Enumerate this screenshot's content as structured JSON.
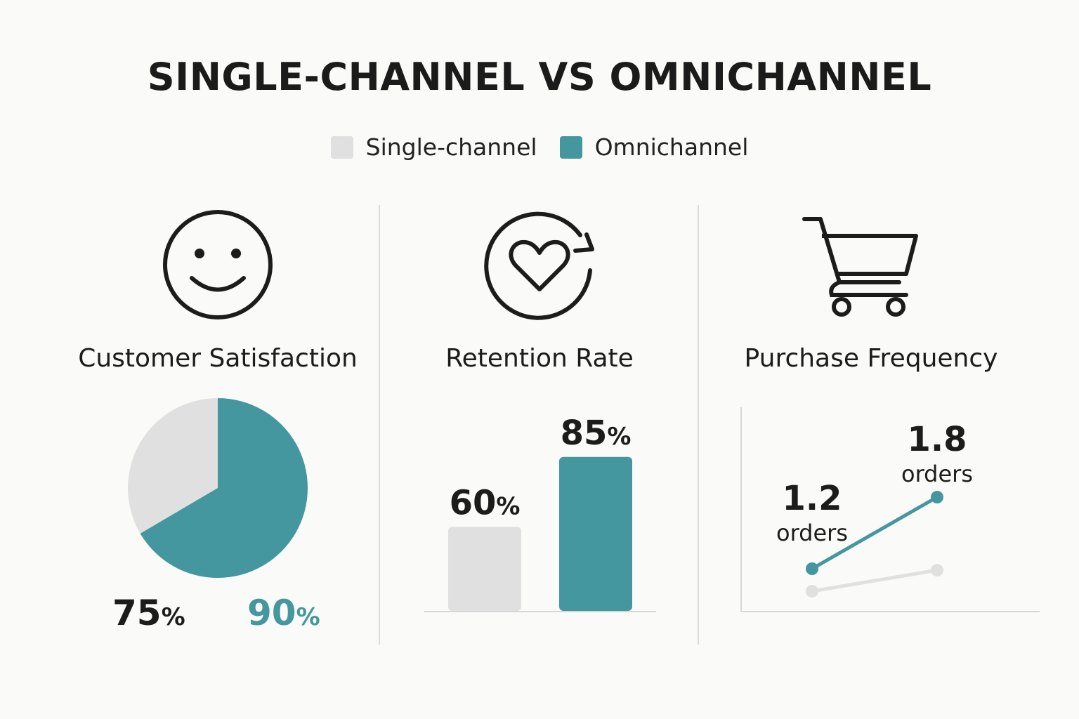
{
  "title": "SINGLE-CHANNEL VS OMNICHANNEL",
  "legend": [
    {
      "label": "Single-channel",
      "color": "#e0e0e0"
    },
    {
      "label": "Omnichannel",
      "color": "#44979f"
    }
  ],
  "colors": {
    "single": "#e0e0e0",
    "omni": "#44979f",
    "text": "#1c1c1c"
  },
  "panels": [
    {
      "title": "Customer Satisfaction",
      "icon": "smiley-face-icon"
    },
    {
      "title": "Retention Rate",
      "icon": "heart-refresh-icon"
    },
    {
      "title": "Purchase Frequency",
      "icon": "shopping-cart-icon"
    }
  ],
  "chart_data": [
    {
      "type": "pie",
      "title": "Customer Satisfaction",
      "series": [
        {
          "name": "Single-channel",
          "value": 75,
          "value_label": "75",
          "unit": "%"
        },
        {
          "name": "Omnichannel",
          "value": 90,
          "value_label": "90",
          "unit": "%"
        }
      ]
    },
    {
      "type": "bar",
      "title": "Retention Rate",
      "categories": [
        "Single-channel",
        "Omnichannel"
      ],
      "values": [
        60,
        85
      ],
      "value_labels": [
        "60",
        "85"
      ],
      "unit": "%",
      "ylim": [
        0,
        100
      ]
    },
    {
      "type": "line",
      "title": "Purchase Frequency",
      "series": [
        {
          "name": "Omnichannel",
          "values": [
            1.2,
            1.8
          ],
          "value_labels": [
            "1.2",
            "1.8"
          ],
          "unit": "orders"
        },
        {
          "name": "Single-channel",
          "values": [
            1.0,
            1.1
          ]
        }
      ]
    }
  ]
}
